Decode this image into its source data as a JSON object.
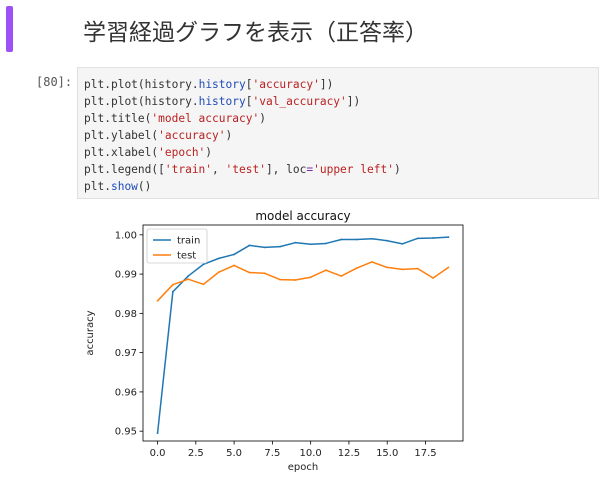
{
  "markdown": {
    "heading": "学習経過グラフを表示（正答率）"
  },
  "cell": {
    "prompt": "[80]:",
    "code_lines": [
      [
        {
          "t": "plt",
          "c": "fn"
        },
        {
          "t": ".",
          "c": "p"
        },
        {
          "t": "plot",
          "c": "fn"
        },
        {
          "t": "(",
          "c": "p"
        },
        {
          "t": "history",
          "c": "fn"
        },
        {
          "t": ".",
          "c": "p"
        },
        {
          "t": "history",
          "c": "attr"
        },
        {
          "t": "[",
          "c": "p"
        },
        {
          "t": "'accuracy'",
          "c": "str"
        },
        {
          "t": "])",
          "c": "p"
        }
      ],
      [
        {
          "t": "plt",
          "c": "fn"
        },
        {
          "t": ".",
          "c": "p"
        },
        {
          "t": "plot",
          "c": "fn"
        },
        {
          "t": "(",
          "c": "p"
        },
        {
          "t": "history",
          "c": "fn"
        },
        {
          "t": ".",
          "c": "p"
        },
        {
          "t": "history",
          "c": "attr"
        },
        {
          "t": "[",
          "c": "p"
        },
        {
          "t": "'val_accuracy'",
          "c": "str"
        },
        {
          "t": "])",
          "c": "p"
        }
      ],
      [
        {
          "t": "plt",
          "c": "fn"
        },
        {
          "t": ".",
          "c": "p"
        },
        {
          "t": "title",
          "c": "fn"
        },
        {
          "t": "(",
          "c": "p"
        },
        {
          "t": "'model accuracy'",
          "c": "str"
        },
        {
          "t": ")",
          "c": "p"
        }
      ],
      [
        {
          "t": "plt",
          "c": "fn"
        },
        {
          "t": ".",
          "c": "p"
        },
        {
          "t": "ylabel",
          "c": "fn"
        },
        {
          "t": "(",
          "c": "p"
        },
        {
          "t": "'accuracy'",
          "c": "str"
        },
        {
          "t": ")",
          "c": "p"
        }
      ],
      [
        {
          "t": "plt",
          "c": "fn"
        },
        {
          "t": ".",
          "c": "p"
        },
        {
          "t": "xlabel",
          "c": "fn"
        },
        {
          "t": "(",
          "c": "p"
        },
        {
          "t": "'epoch'",
          "c": "str"
        },
        {
          "t": ")",
          "c": "p"
        }
      ],
      [
        {
          "t": "plt",
          "c": "fn"
        },
        {
          "t": ".",
          "c": "p"
        },
        {
          "t": "legend",
          "c": "fn"
        },
        {
          "t": "([",
          "c": "p"
        },
        {
          "t": "'train'",
          "c": "str"
        },
        {
          "t": ", ",
          "c": "p"
        },
        {
          "t": "'test'",
          "c": "str"
        },
        {
          "t": "], loc",
          "c": "p"
        },
        {
          "t": "=",
          "c": "op"
        },
        {
          "t": "'upper left'",
          "c": "str"
        },
        {
          "t": ")",
          "c": "p"
        }
      ],
      [
        {
          "t": "plt",
          "c": "fn"
        },
        {
          "t": ".",
          "c": "p"
        },
        {
          "t": "show",
          "c": "attr"
        },
        {
          "t": "()",
          "c": "p"
        }
      ]
    ]
  },
  "colors": {
    "accent_bar": "#9b51f5",
    "train": "#1f77b4",
    "test": "#ff7f0e"
  },
  "chart_data": {
    "type": "line",
    "title": "model accuracy",
    "xlabel": "epoch",
    "ylabel": "accuracy",
    "xlim": [
      -0.95,
      19.95
    ],
    "ylim": [
      0.9475,
      1.0025
    ],
    "x_ticks": [
      0.0,
      2.5,
      5.0,
      7.5,
      10.0,
      12.5,
      15.0,
      17.5
    ],
    "x_tick_labels": [
      "0.0",
      "2.5",
      "5.0",
      "7.5",
      "10.0",
      "12.5",
      "15.0",
      "17.5"
    ],
    "y_ticks": [
      0.95,
      0.96,
      0.97,
      0.98,
      0.99,
      1.0
    ],
    "y_tick_labels": [
      "0.95",
      "0.96",
      "0.97",
      "0.98",
      "0.99",
      "1.00"
    ],
    "legend_position": "upper left",
    "grid": false,
    "x": [
      0,
      1,
      2,
      3,
      4,
      5,
      6,
      7,
      8,
      9,
      10,
      11,
      12,
      13,
      14,
      15,
      16,
      17,
      18,
      19
    ],
    "series": [
      {
        "name": "train",
        "color": "#1f77b4",
        "values": [
          0.9495,
          0.9855,
          0.9895,
          0.9925,
          0.994,
          0.995,
          0.9973,
          0.9968,
          0.997,
          0.998,
          0.9976,
          0.9978,
          0.9988,
          0.9988,
          0.999,
          0.9985,
          0.9977,
          0.9991,
          0.9992,
          0.9994
        ]
      },
      {
        "name": "test",
        "color": "#ff7f0e",
        "values": [
          0.9832,
          0.9873,
          0.9887,
          0.9874,
          0.9905,
          0.9922,
          0.9904,
          0.9902,
          0.9886,
          0.9885,
          0.9892,
          0.991,
          0.9895,
          0.9915,
          0.9931,
          0.9917,
          0.9912,
          0.9914,
          0.989,
          0.9917
        ]
      }
    ]
  }
}
